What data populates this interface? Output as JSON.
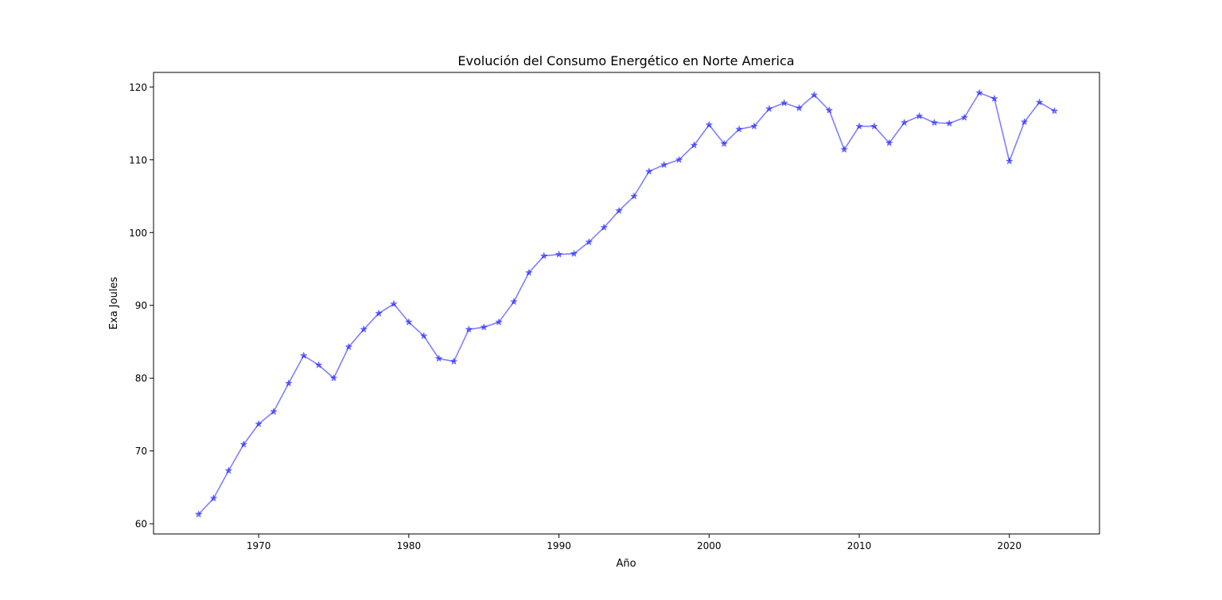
{
  "chart_data": {
    "type": "line",
    "title": "Evolución del Consumo Energético en Norte America",
    "xlabel": "Año",
    "ylabel": "Exa Joules",
    "xlim": [
      1963,
      2026
    ],
    "ylim": [
      58.6,
      122.0
    ],
    "xticks": [
      1970,
      1980,
      1990,
      2000,
      2010,
      2020
    ],
    "yticks": [
      60,
      70,
      80,
      90,
      100,
      110,
      120
    ],
    "grid": false,
    "line_color": "#0000ff",
    "marker": "star",
    "series": [
      {
        "x": [
          1966,
          1967,
          1968,
          1969,
          1970,
          1971,
          1972,
          1973,
          1974,
          1975,
          1976,
          1977,
          1978,
          1979,
          1980,
          1981,
          1982,
          1983,
          1984,
          1985,
          1986,
          1987,
          1988,
          1989,
          1990,
          1991,
          1992,
          1993,
          1994,
          1995,
          1996,
          1997,
          1998,
          1999,
          2000,
          2001,
          2002,
          2003,
          2004,
          2005,
          2006,
          2007,
          2008,
          2009,
          2010,
          2011,
          2012,
          2013,
          2014,
          2015,
          2016,
          2017,
          2018,
          2019,
          2020,
          2021,
          2022,
          2023
        ],
        "y": [
          61.3,
          63.5,
          67.3,
          70.9,
          73.7,
          75.4,
          79.3,
          83.1,
          81.8,
          80.0,
          84.3,
          86.7,
          88.9,
          90.2,
          87.7,
          85.8,
          82.7,
          82.3,
          86.7,
          87.0,
          87.7,
          90.5,
          94.5,
          96.8,
          97.0,
          97.1,
          98.7,
          100.7,
          103.0,
          105.0,
          108.4,
          109.3,
          110.0,
          112.0,
          114.8,
          112.2,
          114.2,
          114.6,
          117.0,
          117.8,
          117.1,
          118.9,
          116.8,
          111.4,
          114.6,
          114.6,
          112.3,
          115.1,
          116.0,
          115.1,
          115.0,
          115.8,
          119.2,
          118.4,
          109.8,
          115.2,
          117.9,
          116.7
        ]
      }
    ]
  }
}
